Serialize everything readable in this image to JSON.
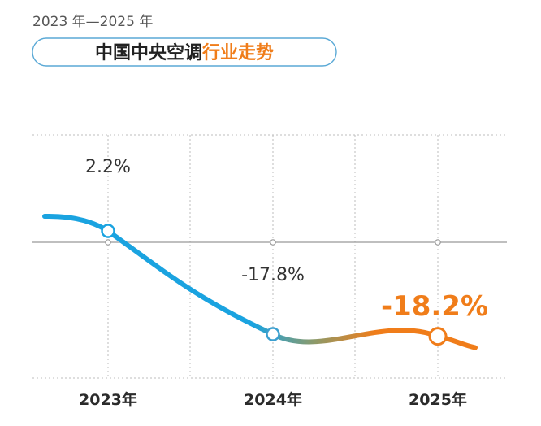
{
  "header": {
    "subtitle": "2023 年—2025 年",
    "title_main": "中国中央空调",
    "title_accent": "行业走势"
  },
  "colors": {
    "accent": "#f07d1a",
    "line_blue": "#1aa3e0",
    "baseline": "#999999",
    "grid": "#bdbdbd",
    "pill_border": "#5aa9d6",
    "title_dark": "#222222"
  },
  "chart_data": {
    "type": "line",
    "title": "中国中央空调行业走势",
    "subtitle": "2023 年—2025 年",
    "categories": [
      "2023年",
      "2024年",
      "2025年"
    ],
    "values": [
      2.2,
      -17.8,
      -18.2
    ],
    "data_labels": [
      "2.2%",
      "-17.8%",
      "-18.2%"
    ],
    "highlight_index": 2,
    "y_unit": "%",
    "grid": "dotted vertical",
    "legend": "none"
  }
}
